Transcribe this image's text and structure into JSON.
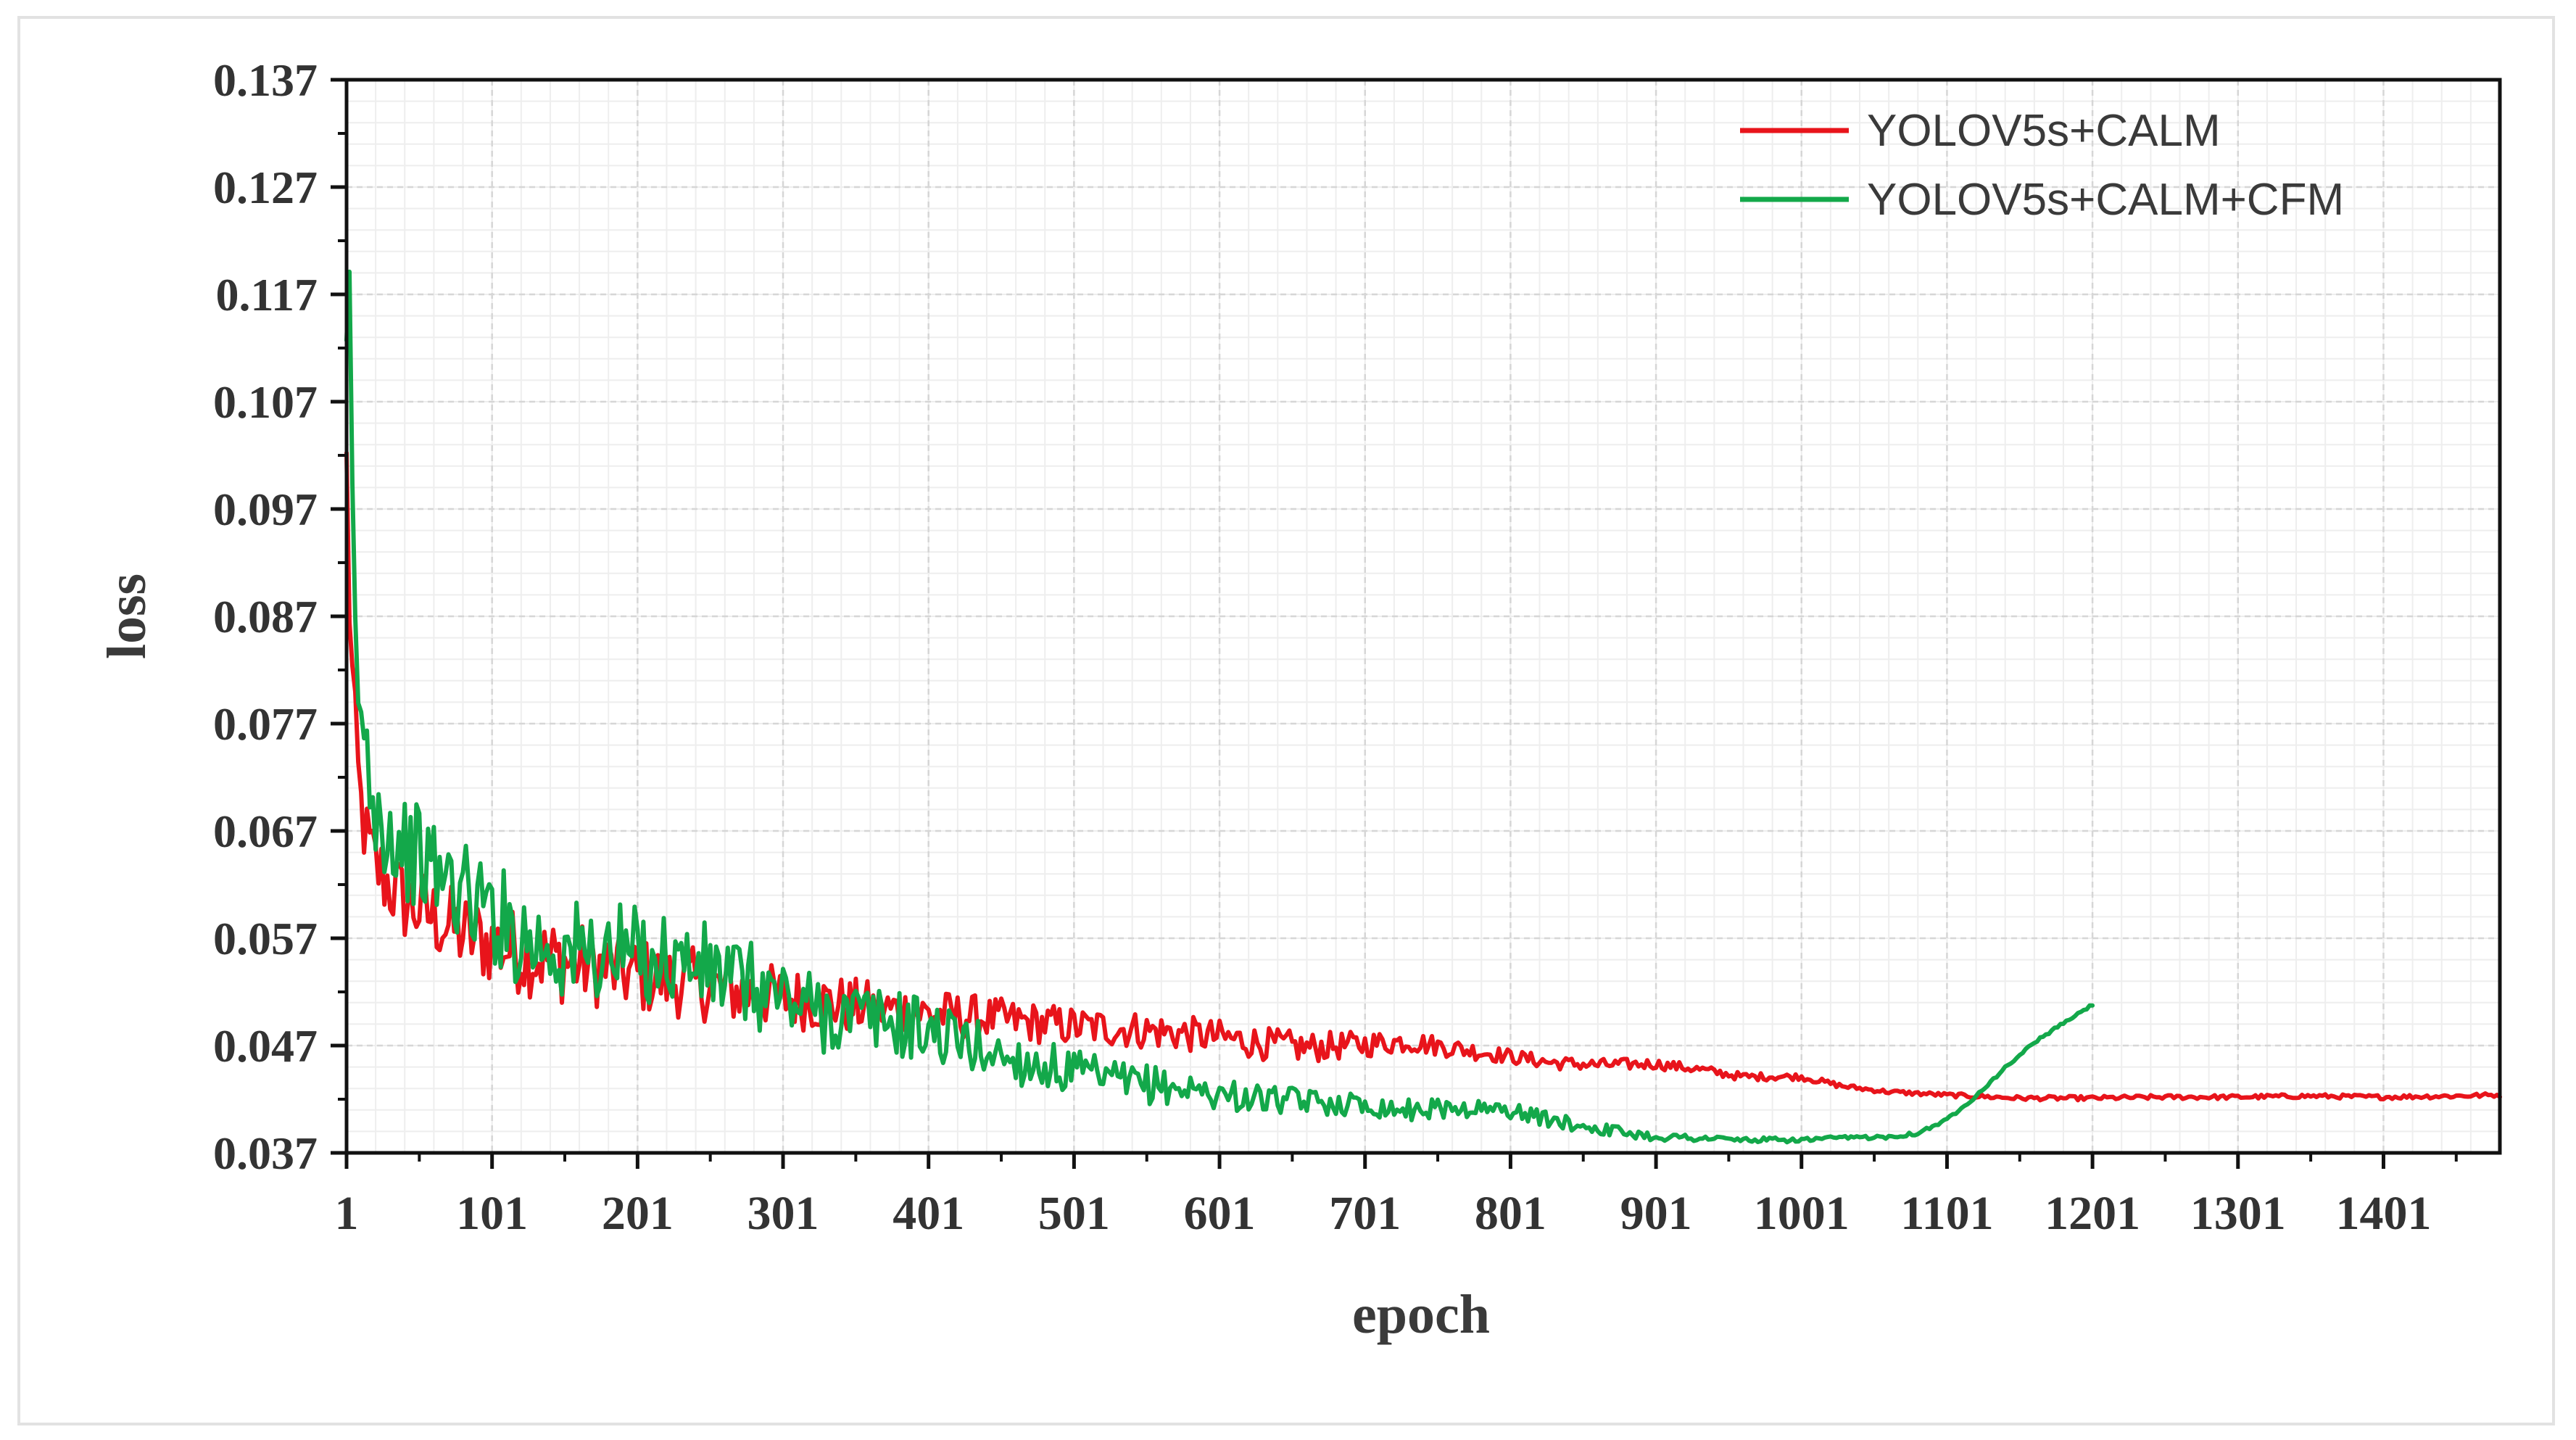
{
  "chart_data": {
    "type": "line",
    "xlabel": "epoch",
    "ylabel": "loss",
    "xlim": [
      1,
      1481
    ],
    "ylim": [
      0.037,
      0.137
    ],
    "x_ticks": [
      1,
      101,
      201,
      301,
      401,
      501,
      601,
      701,
      801,
      901,
      1001,
      1101,
      1201,
      1301,
      1401
    ],
    "x_tick_labels": [
      "1",
      "101",
      "201",
      "301",
      "401",
      "501",
      "601",
      "701",
      "801",
      "901",
      "1001",
      "1101",
      "1201",
      "1301",
      "1401"
    ],
    "y_ticks": [
      0.037,
      0.047,
      0.057,
      0.067,
      0.077,
      0.087,
      0.097,
      0.107,
      0.117,
      0.127,
      0.137
    ],
    "y_tick_labels": [
      "0.037",
      "0.047",
      "0.057",
      "0.067",
      "0.077",
      "0.087",
      "0.097",
      "0.107",
      "0.117",
      "0.127",
      "0.137"
    ],
    "grid": true,
    "legend_position": "top-right",
    "series": [
      {
        "name": "YOLOV5s+CALM",
        "color": "#e8141b",
        "noise": [
          [
            1,
            0.004
          ],
          [
            150,
            0.004
          ],
          [
            300,
            0.003
          ],
          [
            450,
            0.002
          ],
          [
            650,
            0.0015
          ],
          [
            800,
            0.0007
          ],
          [
            950,
            0.0004
          ],
          [
            1050,
            0.0002
          ],
          [
            1481,
            0.0002
          ]
        ],
        "x": [
          1,
          3,
          6,
          10,
          15,
          20,
          30,
          40,
          60,
          80,
          100,
          125,
          150,
          175,
          200,
          230,
          260,
          300,
          330,
          360,
          400,
          430,
          460,
          500,
          530,
          560,
          600,
          630,
          660,
          700,
          730,
          760,
          800,
          830,
          860,
          900,
          930,
          960,
          1000,
          1030,
          1060,
          1100,
          1150,
          1200,
          1250,
          1300,
          1350,
          1400,
          1450,
          1481
        ],
        "y": [
          0.101,
          0.088,
          0.078,
          0.07,
          0.066,
          0.064,
          0.062,
          0.0605,
          0.059,
          0.0575,
          0.0565,
          0.0555,
          0.0548,
          0.0543,
          0.0535,
          0.053,
          0.0522,
          0.0515,
          0.051,
          0.0505,
          0.05,
          0.0497,
          0.0493,
          0.0488,
          0.0486,
          0.0483,
          0.0478,
          0.0472,
          0.0468,
          0.0471,
          0.0474,
          0.0468,
          0.046,
          0.0454,
          0.0452,
          0.0453,
          0.0448,
          0.0441,
          0.0441,
          0.0432,
          0.0427,
          0.0424,
          0.0421,
          0.0421,
          0.0422,
          0.0422,
          0.0423,
          0.0422,
          0.0423,
          0.0424
        ]
      },
      {
        "name": "YOLOV5s+CALM+CFM",
        "color": "#13a84a",
        "noise": [
          [
            1,
            0.002
          ],
          [
            10,
            0.005
          ],
          [
            150,
            0.005
          ],
          [
            300,
            0.004
          ],
          [
            450,
            0.0025
          ],
          [
            650,
            0.0012
          ],
          [
            800,
            0.0008
          ],
          [
            900,
            0.0004
          ],
          [
            1000,
            0.0002
          ],
          [
            1201,
            0.0001
          ]
        ],
        "x": [
          1,
          2,
          4,
          7,
          10,
          15,
          20,
          30,
          40,
          55,
          70,
          85,
          100,
          125,
          150,
          175,
          200,
          230,
          260,
          300,
          330,
          360,
          400,
          430,
          460,
          500,
          530,
          560,
          600,
          630,
          660,
          700,
          730,
          760,
          800,
          830,
          860,
          900,
          930,
          960,
          1000,
          1030,
          1060,
          1080,
          1100,
          1120,
          1140,
          1160,
          1180,
          1201
        ],
        "y": [
          0.111,
          0.13,
          0.105,
          0.085,
          0.078,
          0.074,
          0.07,
          0.067,
          0.0655,
          0.064,
          0.0625,
          0.061,
          0.0595,
          0.057,
          0.0558,
          0.0555,
          0.0555,
          0.055,
          0.0535,
          0.0515,
          0.05,
          0.0495,
          0.0485,
          0.047,
          0.0457,
          0.0445,
          0.0436,
          0.0433,
          0.0425,
          0.042,
          0.0418,
          0.0415,
          0.041,
          0.0412,
          0.041,
          0.04,
          0.0393,
          0.0385,
          0.0384,
          0.0382,
          0.0382,
          0.0384,
          0.0385,
          0.0388,
          0.04,
          0.0422,
          0.0448,
          0.0472,
          0.049,
          0.0508
        ]
      }
    ]
  }
}
